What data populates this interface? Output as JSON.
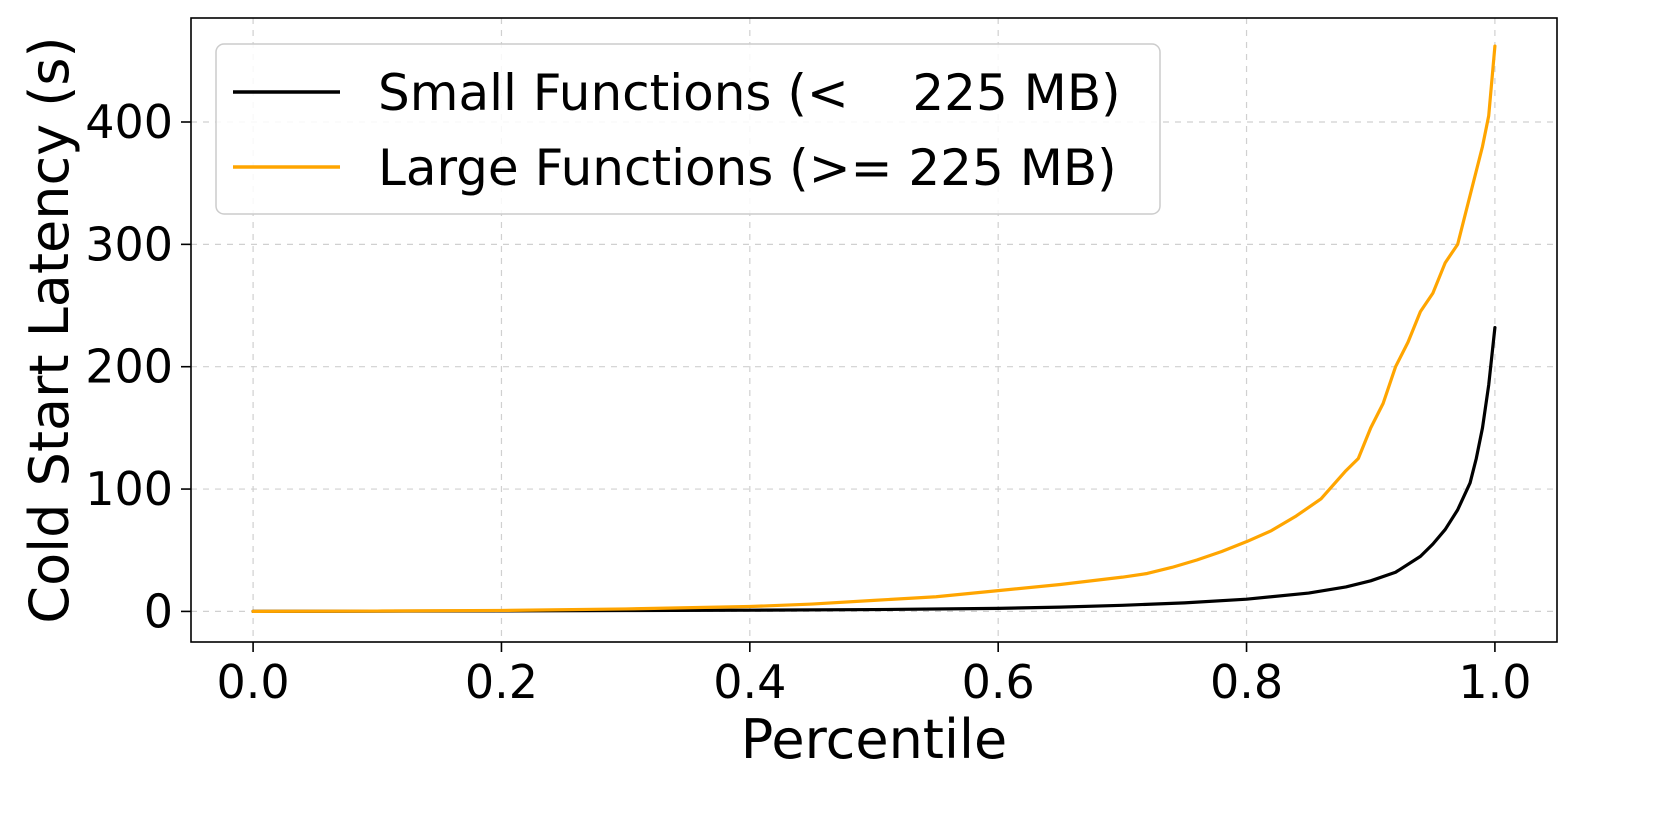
{
  "chart_data": {
    "type": "line",
    "title": "",
    "xlabel": "Percentile",
    "ylabel": "Cold Start Latency (s)",
    "xlim": [
      -0.05,
      1.05
    ],
    "ylim": [
      -25,
      485
    ],
    "xticks": [
      0.0,
      0.2,
      0.4,
      0.6,
      0.8,
      1.0
    ],
    "xtick_labels": [
      "0.0",
      "0.2",
      "0.4",
      "0.6",
      "0.8",
      "1.0"
    ],
    "yticks": [
      0,
      100,
      200,
      300,
      400
    ],
    "ytick_labels": [
      "0",
      "100",
      "200",
      "300",
      "400"
    ],
    "grid": true,
    "legend_position": "top-left",
    "series": [
      {
        "name": "Small Functions (<    225 MB)",
        "color": "#000000",
        "x": [
          0.0,
          0.1,
          0.2,
          0.3,
          0.4,
          0.5,
          0.6,
          0.65,
          0.7,
          0.75,
          0.8,
          0.85,
          0.88,
          0.9,
          0.92,
          0.94,
          0.95,
          0.96,
          0.97,
          0.98,
          0.985,
          0.99,
          0.995,
          1.0
        ],
        "values": [
          0,
          0.2,
          0.4,
          0.7,
          1,
          1.5,
          2.5,
          3.5,
          5,
          7,
          10,
          15,
          20,
          25,
          32,
          45,
          55,
          67,
          83,
          105,
          125,
          150,
          185,
          232
        ]
      },
      {
        "name": "Large Functions (>= 225 MB)",
        "color": "#ffa500",
        "x": [
          0.0,
          0.1,
          0.2,
          0.3,
          0.4,
          0.45,
          0.5,
          0.55,
          0.6,
          0.65,
          0.7,
          0.72,
          0.74,
          0.76,
          0.78,
          0.8,
          0.82,
          0.84,
          0.86,
          0.88,
          0.89,
          0.9,
          0.91,
          0.92,
          0.93,
          0.94,
          0.95,
          0.96,
          0.97,
          0.98,
          0.99,
          0.995,
          1.0
        ],
        "values": [
          0,
          0.3,
          0.8,
          2,
          4,
          6,
          9,
          12,
          17,
          22,
          28,
          31,
          36,
          42,
          49,
          57,
          66,
          78,
          92,
          115,
          125,
          150,
          170,
          200,
          220,
          245,
          260,
          285,
          300,
          340,
          380,
          405,
          462
        ]
      }
    ]
  }
}
